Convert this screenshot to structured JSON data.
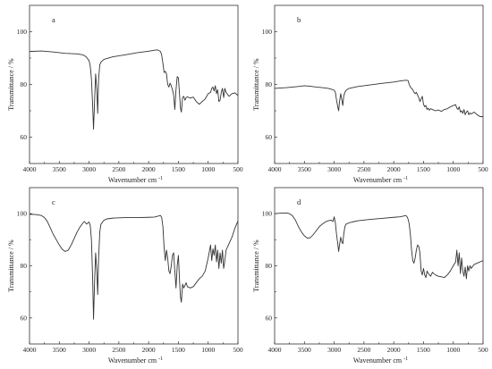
{
  "chart_data": [
    {
      "type": "line",
      "panel_label": "a",
      "xlabel": "Wavenumber cm",
      "xlabel_sup": "-1",
      "ylabel": "Transmittance / %",
      "xlim": [
        4000,
        500
      ],
      "ylim": [
        50,
        110
      ],
      "x_ticks": [
        "4000",
        "3500",
        "3000",
        "2500",
        "2000",
        "1500",
        "1000",
        "500"
      ],
      "y_ticks": [
        "60",
        "80",
        "100"
      ],
      "line_color": "#333333",
      "series": [
        {
          "x": [
            4000,
            3800,
            3600,
            3400,
            3200,
            3100,
            3050,
            3000,
            2980,
            2960,
            2940,
            2925,
            2910,
            2890,
            2870,
            2855,
            2840,
            2820,
            2800,
            2750,
            2600,
            2400,
            2200,
            2000,
            1900,
            1850,
            1800,
            1780,
            1760,
            1740,
            1720,
            1700,
            1680,
            1660,
            1640,
            1620,
            1600,
            1580,
            1560,
            1540,
            1520,
            1500,
            1480,
            1465,
            1450,
            1430,
            1410,
            1390,
            1370,
            1350,
            1300,
            1250,
            1200,
            1150,
            1100,
            1050,
            1000,
            960,
            940,
            920,
            900,
            880,
            860,
            840,
            820,
            800,
            780,
            760,
            740,
            720,
            700,
            650,
            600,
            550,
            500
          ],
          "y": [
            92.5,
            92.7,
            92.3,
            91.8,
            91.6,
            91.2,
            90.5,
            89.0,
            87.0,
            82.0,
            72.0,
            63.0,
            72.0,
            84.0,
            78.0,
            69.0,
            82.0,
            87.5,
            88.5,
            89.5,
            90.5,
            91.2,
            92.0,
            92.6,
            93.0,
            93.1,
            92.5,
            91.0,
            88.0,
            84.5,
            85.0,
            84.0,
            80.0,
            79.0,
            80.5,
            79.5,
            78.0,
            76.0,
            70.5,
            78.0,
            83.0,
            82.5,
            76.0,
            71.0,
            69.5,
            75.0,
            75.5,
            74.0,
            75.0,
            75.3,
            74.8,
            75.2,
            73.5,
            72.5,
            73.5,
            74.5,
            76.5,
            77.0,
            78.5,
            79.0,
            77.5,
            79.5,
            76.5,
            78.0,
            73.5,
            74.0,
            77.0,
            78.5,
            75.0,
            78.5,
            77.0,
            75.5,
            76.5,
            76.8,
            75.8
          ]
        }
      ]
    },
    {
      "type": "line",
      "panel_label": "b",
      "xlabel": "Wavenumber cm",
      "xlabel_sup": "-1",
      "ylabel": "Transmittance / %",
      "xlim": [
        4000,
        500
      ],
      "ylim": [
        50,
        110
      ],
      "x_ticks": [
        "4000",
        "3500",
        "3000",
        "2500",
        "2000",
        "1500",
        "1000",
        "500"
      ],
      "y_ticks": [
        "60",
        "80",
        "100"
      ],
      "line_color": "#333333",
      "series": [
        {
          "x": [
            4000,
            3800,
            3600,
            3500,
            3400,
            3300,
            3200,
            3100,
            3050,
            3000,
            2980,
            2960,
            2940,
            2925,
            2910,
            2890,
            2870,
            2855,
            2840,
            2820,
            2800,
            2750,
            2600,
            2400,
            2200,
            2000,
            1900,
            1800,
            1760,
            1740,
            1720,
            1700,
            1680,
            1660,
            1640,
            1620,
            1600,
            1580,
            1560,
            1540,
            1520,
            1500,
            1480,
            1460,
            1440,
            1420,
            1400,
            1380,
            1350,
            1300,
            1250,
            1200,
            1150,
            1100,
            1050,
            1000,
            960,
            940,
            920,
            900,
            880,
            860,
            840,
            820,
            800,
            780,
            760,
            740,
            720,
            700,
            650,
            600,
            550,
            500
          ],
          "y": [
            78.5,
            78.8,
            79.2,
            79.5,
            79.3,
            79.0,
            78.8,
            78.5,
            78.2,
            77.8,
            77.0,
            74.0,
            71.5,
            70.0,
            73.5,
            76.5,
            74.0,
            72.0,
            75.5,
            77.0,
            77.8,
            78.5,
            79.2,
            79.8,
            80.4,
            80.9,
            81.3,
            81.6,
            81.5,
            80.0,
            79.0,
            78.5,
            78.0,
            77.0,
            76.5,
            77.0,
            76.0,
            75.0,
            73.5,
            74.5,
            75.5,
            72.5,
            71.5,
            72.0,
            70.5,
            71.0,
            70.2,
            70.8,
            70.5,
            70.0,
            70.3,
            69.8,
            70.5,
            70.8,
            71.5,
            72.0,
            72.3,
            71.0,
            70.5,
            71.5,
            69.5,
            70.0,
            69.0,
            70.5,
            68.5,
            69.5,
            70.0,
            68.5,
            69.2,
            68.8,
            69.5,
            68.5,
            67.8,
            67.8
          ]
        }
      ]
    },
    {
      "type": "line",
      "panel_label": "c",
      "xlabel": "Wavenumber cm",
      "xlabel_sup": "-1",
      "ylabel": "Transmittance / %",
      "xlim": [
        4000,
        500
      ],
      "ylim": [
        50,
        110
      ],
      "x_ticks": [
        "4000",
        "3500",
        "3000",
        "2500",
        "2000",
        "1500",
        "1000",
        "500"
      ],
      "y_ticks": [
        "60",
        "80",
        "100"
      ],
      "line_color": "#333333",
      "series": [
        {
          "x": [
            4000,
            3900,
            3800,
            3750,
            3700,
            3650,
            3600,
            3550,
            3500,
            3450,
            3400,
            3350,
            3300,
            3250,
            3200,
            3150,
            3100,
            3080,
            3060,
            3040,
            3020,
            3000,
            2980,
            2960,
            2940,
            2925,
            2910,
            2890,
            2870,
            2855,
            2840,
            2820,
            2800,
            2750,
            2700,
            2600,
            2400,
            2200,
            2000,
            1900,
            1850,
            1800,
            1780,
            1760,
            1740,
            1720,
            1700,
            1680,
            1660,
            1640,
            1620,
            1600,
            1580,
            1560,
            1540,
            1520,
            1500,
            1480,
            1465,
            1450,
            1430,
            1410,
            1390,
            1370,
            1350,
            1300,
            1250,
            1200,
            1150,
            1100,
            1050,
            1000,
            960,
            940,
            920,
            900,
            880,
            860,
            840,
            820,
            800,
            780,
            760,
            740,
            720,
            700,
            650,
            600,
            550,
            500
          ],
          "y": [
            99.8,
            99.7,
            99.3,
            98.5,
            97.0,
            94.5,
            92.0,
            90.0,
            88.0,
            86.3,
            85.5,
            86.0,
            88.0,
            90.5,
            93.0,
            95.0,
            96.5,
            97.0,
            96.5,
            96.0,
            96.5,
            96.8,
            95.5,
            90.0,
            75.0,
            59.5,
            72.0,
            85.0,
            78.0,
            69.0,
            83.0,
            93.0,
            96.0,
            97.5,
            98.0,
            98.3,
            98.5,
            98.5,
            98.6,
            98.7,
            99.0,
            99.3,
            98.5,
            95.0,
            87.0,
            82.0,
            86.0,
            83.0,
            78.0,
            77.0,
            80.0,
            84.0,
            85.0,
            78.0,
            71.5,
            80.0,
            84.0,
            74.0,
            68.0,
            66.0,
            73.0,
            71.5,
            72.5,
            73.5,
            72.0,
            71.5,
            72.0,
            73.5,
            75.0,
            76.0,
            78.0,
            83.0,
            88.0,
            82.0,
            86.5,
            84.0,
            88.0,
            81.5,
            86.0,
            79.0,
            85.0,
            81.0,
            86.0,
            79.0,
            82.0,
            86.0,
            88.5,
            91.0,
            94.5,
            97.2
          ]
        }
      ]
    },
    {
      "type": "line",
      "panel_label": "d",
      "xlabel": "Wavenumber cm",
      "xlabel_sup": "-1",
      "ylabel": "Transmittance / %",
      "xlim": [
        4000,
        500
      ],
      "ylim": [
        50,
        110
      ],
      "x_ticks": [
        "4000",
        "3500",
        "3000",
        "2500",
        "2000",
        "1500",
        "1000",
        "500"
      ],
      "y_ticks": [
        "60",
        "80",
        "100"
      ],
      "line_color": "#333333",
      "series": [
        {
          "x": [
            4000,
            3900,
            3800,
            3750,
            3700,
            3650,
            3600,
            3550,
            3500,
            3450,
            3400,
            3350,
            3300,
            3250,
            3200,
            3150,
            3100,
            3050,
            3020,
            3000,
            2980,
            2960,
            2940,
            2925,
            2910,
            2890,
            2870,
            2855,
            2840,
            2820,
            2800,
            2750,
            2700,
            2600,
            2400,
            2200,
            2000,
            1900,
            1850,
            1800,
            1780,
            1760,
            1740,
            1720,
            1700,
            1680,
            1660,
            1640,
            1620,
            1600,
            1580,
            1560,
            1540,
            1520,
            1500,
            1480,
            1460,
            1440,
            1420,
            1400,
            1380,
            1350,
            1300,
            1250,
            1200,
            1150,
            1100,
            1050,
            1000,
            960,
            940,
            920,
            900,
            880,
            860,
            840,
            820,
            800,
            780,
            760,
            740,
            720,
            700,
            650,
            600,
            550,
            500
          ],
          "y": [
            100.0,
            100.2,
            100.3,
            100.0,
            99.2,
            97.5,
            95.0,
            93.0,
            91.5,
            90.6,
            90.8,
            92.0,
            93.5,
            95.0,
            96.0,
            96.8,
            97.3,
            97.5,
            97.0,
            98.8,
            96.5,
            92.0,
            88.5,
            85.5,
            88.0,
            91.0,
            89.0,
            88.5,
            92.0,
            95.0,
            96.0,
            96.5,
            96.8,
            97.3,
            97.8,
            98.2,
            98.6,
            98.8,
            99.0,
            99.3,
            99.0,
            98.0,
            96.0,
            92.0,
            86.0,
            82.0,
            81.0,
            83.0,
            86.0,
            88.0,
            87.5,
            85.0,
            78.0,
            76.5,
            79.0,
            76.5,
            75.5,
            78.0,
            77.0,
            76.5,
            76.0,
            77.5,
            76.5,
            76.0,
            75.8,
            75.5,
            76.5,
            78.0,
            80.0,
            81.5,
            86.0,
            80.0,
            85.0,
            77.0,
            83.0,
            78.0,
            76.0,
            79.5,
            75.0,
            80.0,
            78.0,
            80.0,
            79.0,
            80.5,
            81.0,
            81.5,
            82.0
          ]
        }
      ]
    }
  ]
}
